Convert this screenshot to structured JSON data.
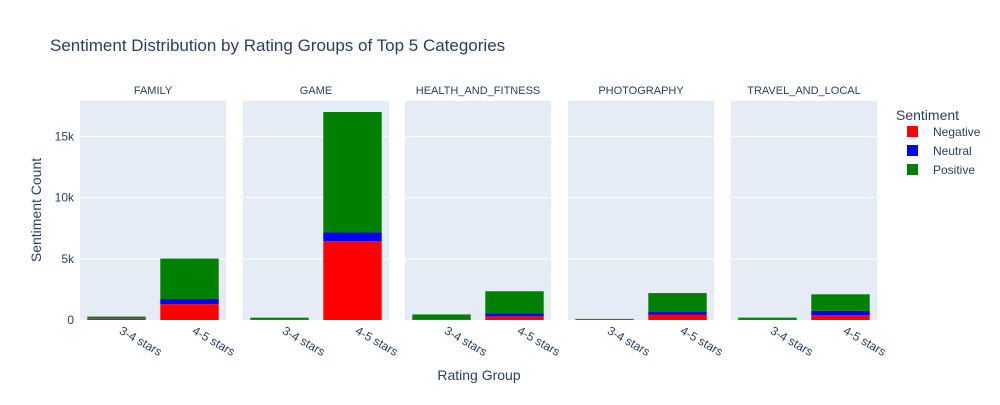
{
  "chart_data": {
    "type": "bar",
    "barmode": "stack",
    "title": "Sentiment Distribution by Rating Groups of Top 5 Categories",
    "xlabel": "Rating Group",
    "ylabel": "Sentiment Count",
    "ylim": [
      0,
      17900
    ],
    "yticks": [
      0,
      5000,
      10000,
      15000
    ],
    "ytick_labels": [
      "0",
      "5k",
      "10k",
      "15k"
    ],
    "grid": true,
    "categories": [
      "3-4 stars",
      "4-5 stars"
    ],
    "legend": {
      "title": "Sentiment",
      "position": "right"
    },
    "series": [
      {
        "name": "Negative",
        "color": "#ff0000"
      },
      {
        "name": "Neutral",
        "color": "#0000ff"
      },
      {
        "name": "Positive",
        "color": "#008000"
      }
    ],
    "panels": [
      {
        "title": "FAMILY",
        "values": {
          "Negative": [
            110,
            1300
          ],
          "Neutral": [
            20,
            420
          ],
          "Positive": [
            150,
            3300
          ]
        }
      },
      {
        "title": "GAME",
        "values": {
          "Negative": [
            60,
            6450
          ],
          "Neutral": [
            10,
            700
          ],
          "Positive": [
            120,
            9850
          ]
        }
      },
      {
        "title": "HEALTH_AND_FITNESS",
        "values": {
          "Negative": [
            60,
            300
          ],
          "Neutral": [
            15,
            250
          ],
          "Positive": [
            380,
            1800
          ]
        }
      },
      {
        "title": "PHOTOGRAPHY",
        "values": {
          "Negative": [
            25,
            450
          ],
          "Neutral": [
            5,
            200
          ],
          "Positive": [
            60,
            1550
          ]
        }
      },
      {
        "title": "TRAVEL_AND_LOCAL",
        "values": {
          "Negative": [
            70,
            400
          ],
          "Neutral": [
            15,
            350
          ],
          "Positive": [
            110,
            1350
          ]
        }
      }
    ]
  }
}
